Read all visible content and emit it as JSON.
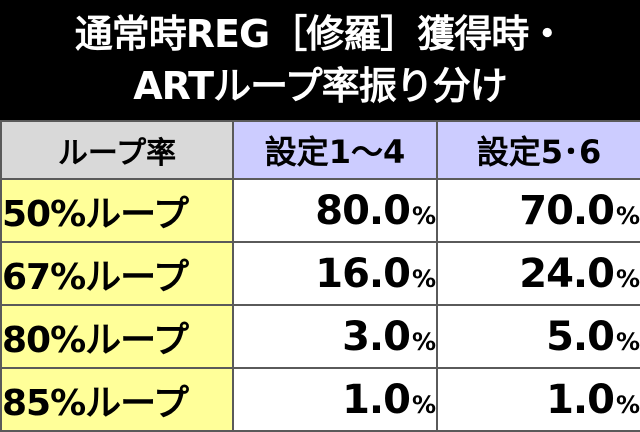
{
  "title": {
    "line1": "通常時REG［修羅］獲得時・",
    "line2": "ARTループ率振り分け"
  },
  "table": {
    "headers": [
      "ループ率",
      "設定1～4",
      "設定5･6"
    ],
    "rows": [
      {
        "label": "50%ループ",
        "values": [
          "80.0",
          "70.0"
        ],
        "unit": "%"
      },
      {
        "label": "67%ループ",
        "values": [
          "16.0",
          "24.0"
        ],
        "unit": "%"
      },
      {
        "label": "80%ループ",
        "values": [
          "3.0",
          "5.0"
        ],
        "unit": "%"
      },
      {
        "label": "85%ループ",
        "values": [
          "1.0",
          "1.0"
        ],
        "unit": "%"
      }
    ]
  },
  "colors": {
    "title_background": "#000000",
    "title_text": "#ffffff",
    "header_label_background": "#d9d9d9",
    "header_setting_background": "#ccccff",
    "row_label_background": "#ffff99",
    "value_background": "#ffffff",
    "border": "#5a5a5a"
  }
}
